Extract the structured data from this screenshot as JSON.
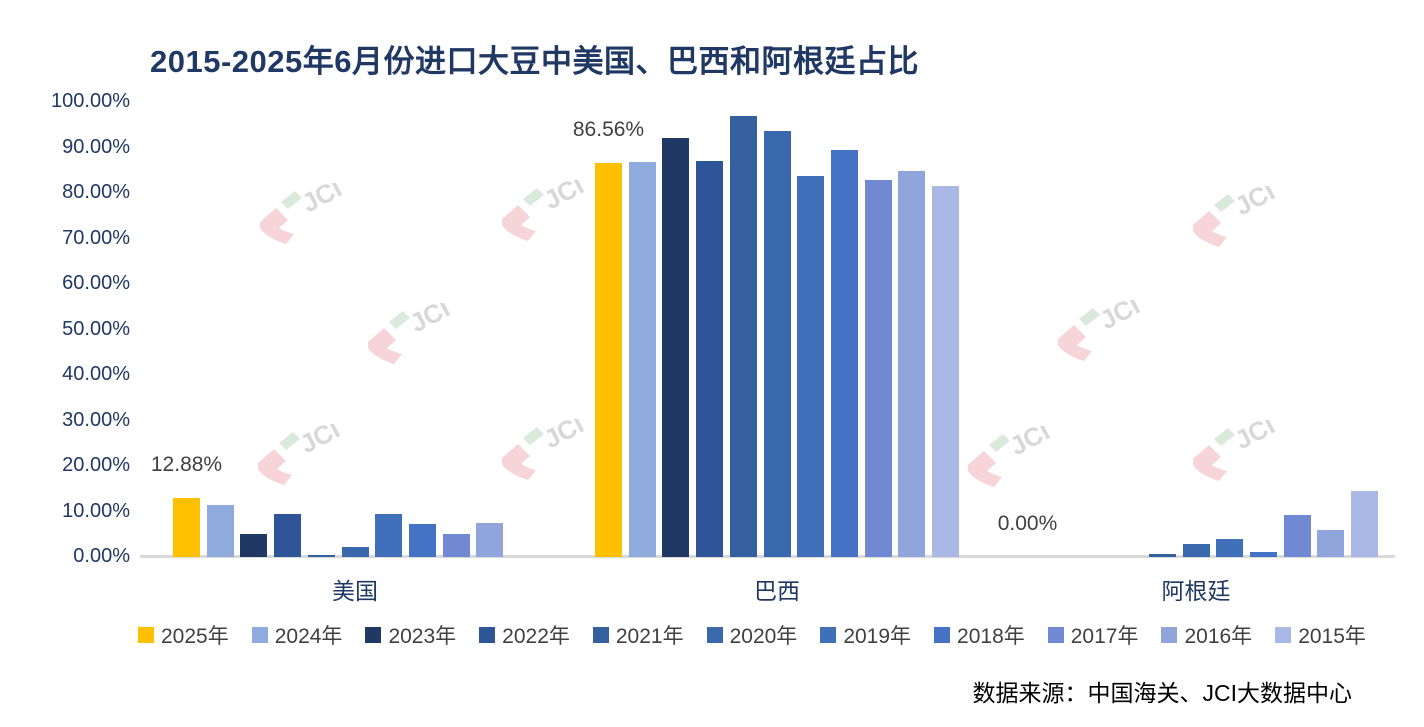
{
  "title": "2015-2025年6月份进口大豆中美国、巴西和阿根廷占比",
  "source": "数据来源：中国海关、JCI大数据中心",
  "watermark": {
    "text": "JCI"
  },
  "colors": {
    "title_text": "#1F3864",
    "axis_label_text": "#1F3864",
    "legend_text": "#404040",
    "data_label_text": "#404040",
    "axis_line": "#D9D9D9",
    "source_text": "#000000",
    "accent_2025": "#FFC000"
  },
  "chart_data": {
    "type": "bar",
    "title": "2015-2025年6月份进口大豆中美国、巴西和阿根廷占比",
    "categories": [
      "美国",
      "巴西",
      "阿根廷"
    ],
    "series": [
      {
        "name": "2025年",
        "color": "#FFC000",
        "values": [
          12.88,
          86.56,
          0.0
        ]
      },
      {
        "name": "2024年",
        "color": "#8FAADC",
        "values": [
          11.4,
          86.9,
          0
        ]
      },
      {
        "name": "2023年",
        "color": "#1F3864",
        "values": [
          5.0,
          92.1,
          0
        ]
      },
      {
        "name": "2022年",
        "color": "#2E5597",
        "values": [
          9.4,
          87.0,
          0
        ]
      },
      {
        "name": "2021年",
        "color": "#35609F",
        "values": [
          0.4,
          96.9,
          0.7
        ]
      },
      {
        "name": "2020年",
        "color": "#3A68AC",
        "values": [
          2.2,
          93.6,
          2.8
        ]
      },
      {
        "name": "2019年",
        "color": "#4070BA",
        "values": [
          9.4,
          83.7,
          3.9
        ]
      },
      {
        "name": "2018年",
        "color": "#4472C4",
        "values": [
          7.3,
          89.4,
          1.2
        ]
      },
      {
        "name": "2017年",
        "color": "#7189D2",
        "values": [
          5.0,
          82.8,
          9.2
        ]
      },
      {
        "name": "2016年",
        "color": "#8FA5DC",
        "values": [
          7.5,
          84.8,
          5.9
        ]
      },
      {
        "name": "2015年",
        "color": "#A9B8E4",
        "values": [
          0.0,
          81.5,
          14.4
        ]
      }
    ],
    "data_labels": {
      "series": "2025年",
      "texts": [
        "12.88%",
        "86.56%",
        "0.00%"
      ]
    },
    "yticks": [
      "100.00%",
      "90.00%",
      "80.00%",
      "70.00%",
      "60.00%",
      "50.00%",
      "40.00%",
      "30.00%",
      "20.00%",
      "10.00%",
      "0.00%"
    ],
    "ylim": [
      0,
      100
    ],
    "xlabel": "",
    "ylabel": "",
    "grid": false,
    "legend_position": "bottom"
  }
}
